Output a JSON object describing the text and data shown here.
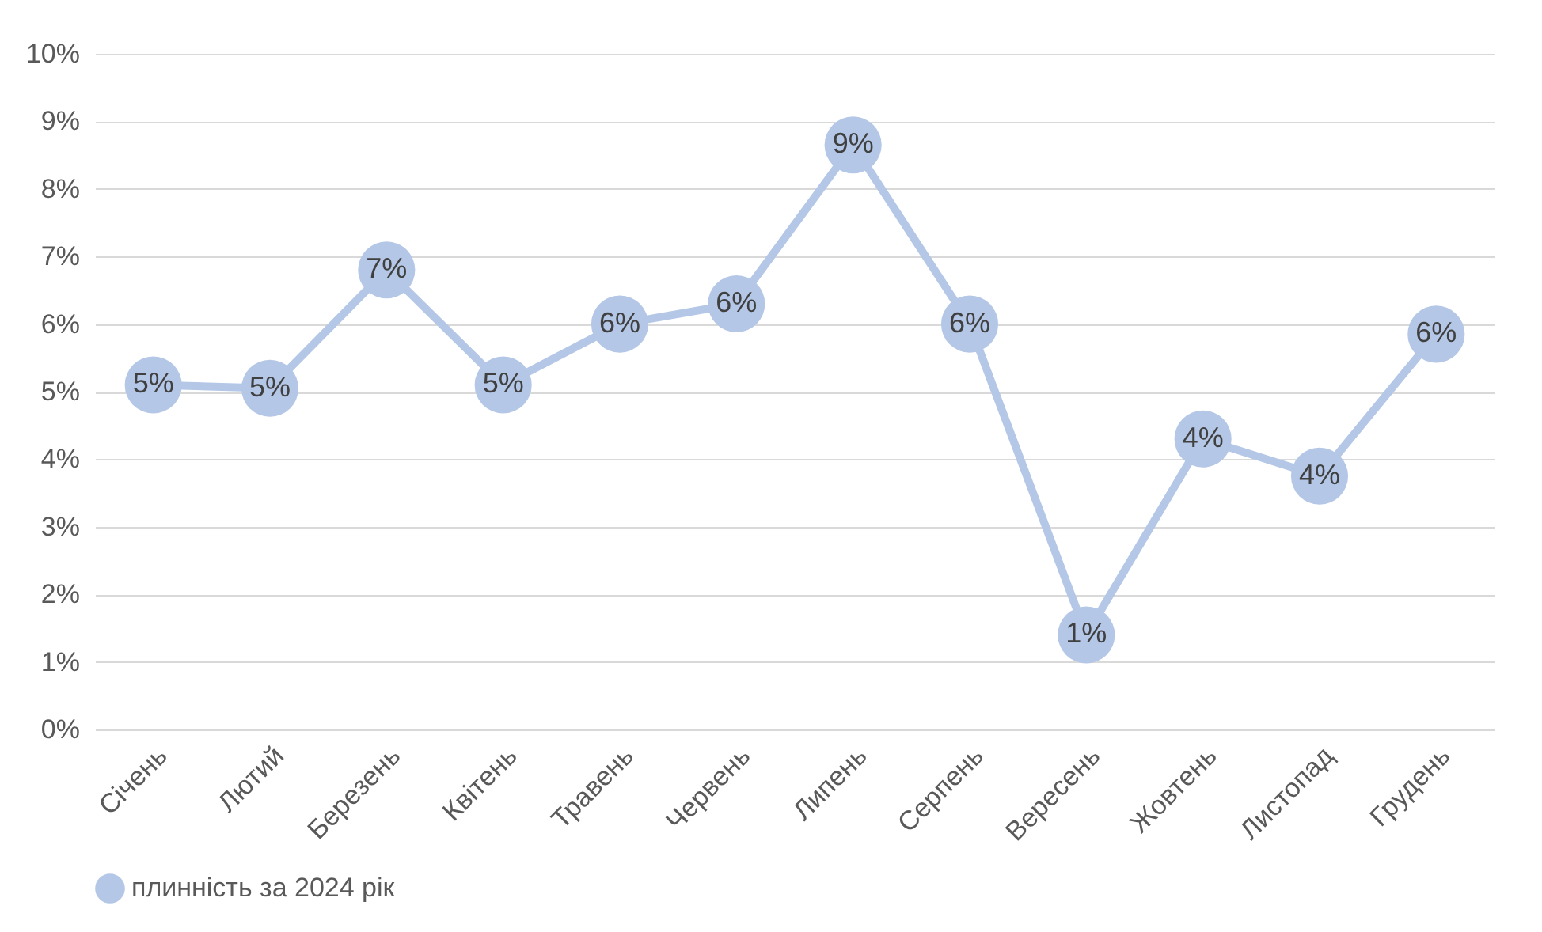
{
  "chart_data": {
    "type": "line",
    "categories": [
      "Січень",
      "Лютий",
      "Березень",
      "Квітень",
      "Травень",
      "Червень",
      "Липень",
      "Серпень",
      "Вересень",
      "Жовтень",
      "Листопад",
      "Грудень"
    ],
    "series": [
      {
        "name": "плинність за 2024 рік",
        "color": "#b4c7e7",
        "values": [
          5.1,
          5.05,
          6.8,
          5.1,
          6.0,
          6.3,
          8.65,
          6.0,
          1.4,
          4.3,
          3.75,
          5.85
        ],
        "value_labels": [
          "5%",
          "5%",
          "7%",
          "5%",
          "6%",
          "6%",
          "9%",
          "6%",
          "1%",
          "4%",
          "4%",
          "6%"
        ]
      }
    ],
    "ylim": [
      0,
      10
    ],
    "yticks": [
      {
        "value": 0,
        "label": "0%"
      },
      {
        "value": 1,
        "label": "1%"
      },
      {
        "value": 2,
        "label": "2%"
      },
      {
        "value": 3,
        "label": "3%"
      },
      {
        "value": 4,
        "label": "4%"
      },
      {
        "value": 5,
        "label": "5%"
      },
      {
        "value": 6,
        "label": "6%"
      },
      {
        "value": 7,
        "label": "7%"
      },
      {
        "value": 8,
        "label": "8%"
      },
      {
        "value": 9,
        "label": "9%"
      },
      {
        "value": 10,
        "label": "10%"
      }
    ],
    "grid": "y",
    "legend": "bottom",
    "marker": "circle",
    "line_style": "solid"
  }
}
